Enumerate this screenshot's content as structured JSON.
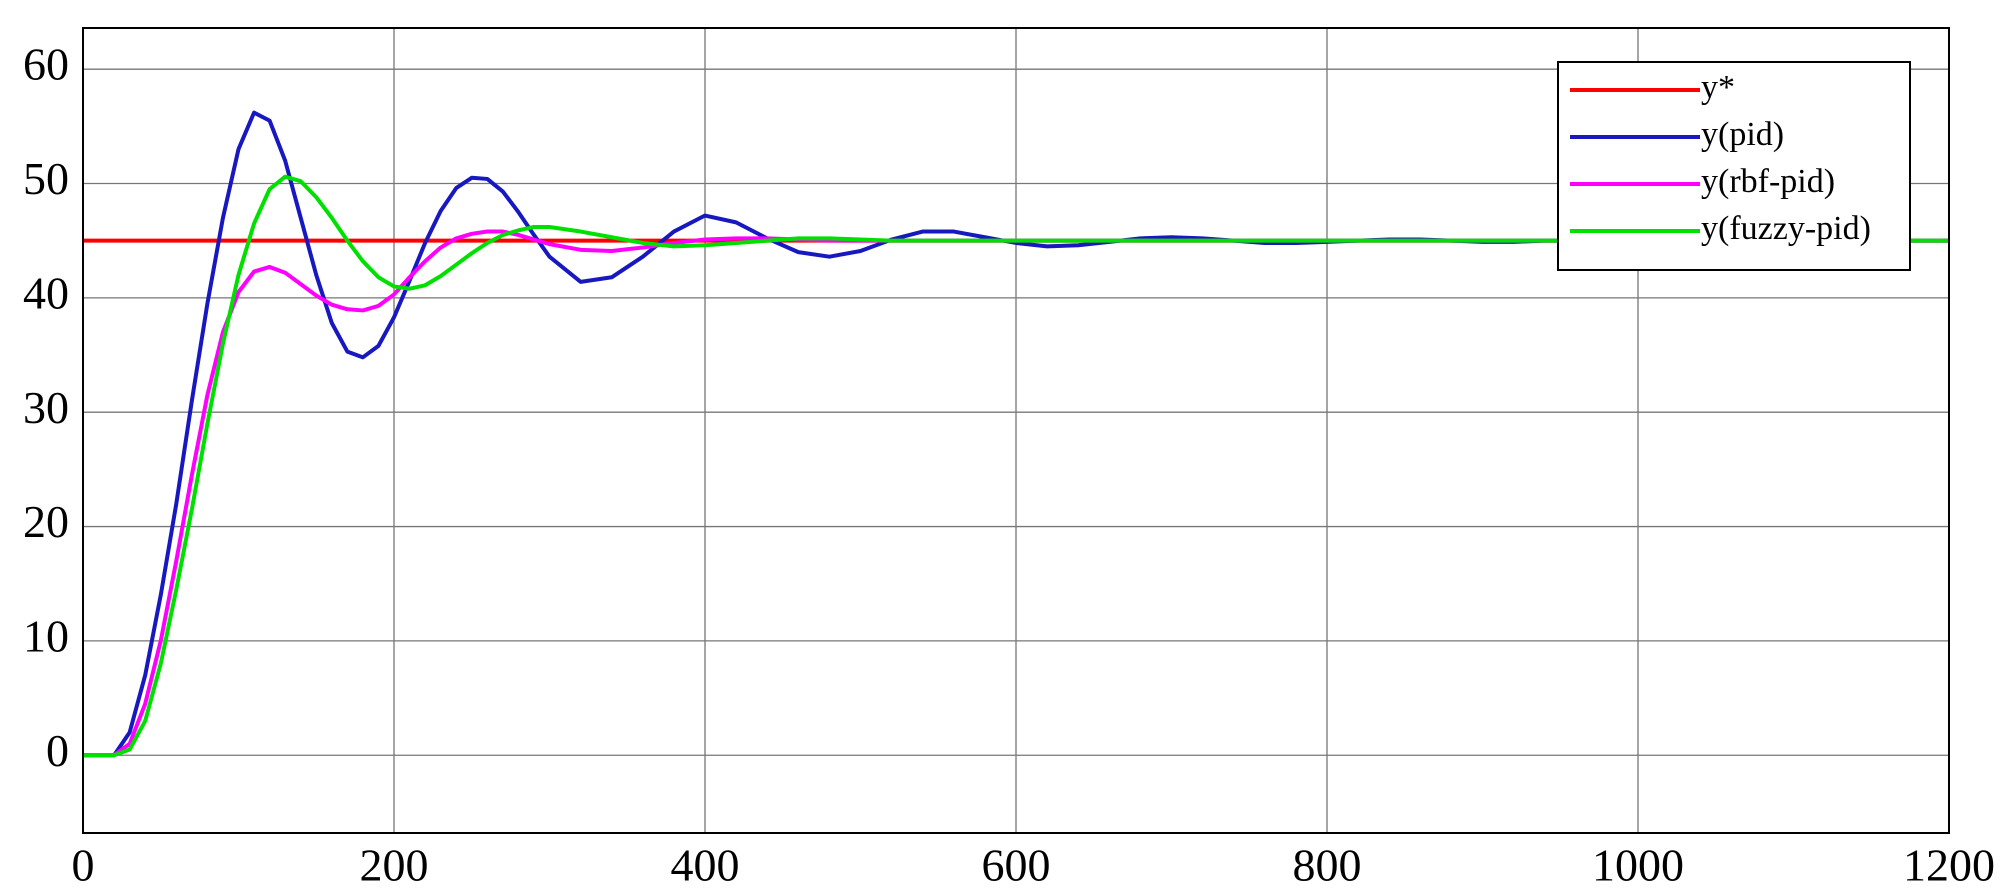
{
  "chart_data": {
    "type": "line",
    "x": [
      0,
      10,
      20,
      30,
      40,
      50,
      60,
      70,
      80,
      90,
      100,
      110,
      120,
      130,
      140,
      150,
      160,
      170,
      180,
      190,
      200,
      210,
      220,
      230,
      240,
      250,
      260,
      270,
      280,
      290,
      300,
      320,
      340,
      360,
      380,
      400,
      420,
      440,
      460,
      480,
      500,
      520,
      540,
      560,
      580,
      600,
      620,
      640,
      660,
      680,
      700,
      720,
      740,
      760,
      780,
      800,
      820,
      840,
      860,
      880,
      900,
      920,
      940,
      960,
      980,
      1000,
      1020,
      1040,
      1060,
      1080,
      1100,
      1120,
      1140,
      1160,
      1180,
      1200
    ],
    "series": [
      {
        "name": "y*",
        "color": "#ff0000",
        "values": [
          45,
          45,
          45,
          45,
          45,
          45,
          45,
          45,
          45,
          45,
          45,
          45,
          45,
          45,
          45,
          45,
          45,
          45,
          45,
          45,
          45,
          45,
          45,
          45,
          45,
          45,
          45,
          45,
          45,
          45,
          45,
          45,
          45,
          45,
          45,
          45,
          45,
          45,
          45,
          45,
          45,
          45,
          45,
          45,
          45,
          45,
          45,
          45,
          45,
          45,
          45,
          45,
          45,
          45,
          45,
          45,
          45,
          45,
          45,
          45,
          45,
          45,
          45,
          45,
          45,
          45,
          45,
          45,
          45,
          45,
          45,
          45,
          45,
          45,
          45,
          45
        ]
      },
      {
        "name": "y(pid)",
        "color": "#1818c0",
        "values": [
          0,
          0,
          0,
          2,
          7,
          14,
          22,
          31,
          39.5,
          47,
          53,
          56.2,
          55.5,
          52,
          47,
          42,
          37.8,
          35.3,
          34.8,
          35.8,
          38.3,
          41.5,
          44.8,
          47.6,
          49.6,
          50.5,
          50.4,
          49.3,
          47.5,
          45.5,
          43.6,
          41.4,
          41.8,
          43.6,
          45.8,
          47.2,
          46.6,
          45.2,
          44,
          43.6,
          44.1,
          45.1,
          45.8,
          45.8,
          45.3,
          44.8,
          44.5,
          44.6,
          44.9,
          45.2,
          45.3,
          45.2,
          45,
          44.8,
          44.8,
          44.9,
          45,
          45.1,
          45.1,
          45,
          44.9,
          44.9,
          45,
          45,
          45,
          45,
          45,
          45,
          45,
          45,
          45,
          45,
          45,
          45,
          45,
          45
        ]
      },
      {
        "name": "y(rbf-pid)",
        "color": "#ff00ff",
        "values": [
          0,
          0,
          0,
          1,
          4.5,
          10,
          17,
          24.5,
          31.5,
          37,
          40.5,
          42.3,
          42.7,
          42.2,
          41.2,
          40.2,
          39.4,
          39,
          38.9,
          39.3,
          40.3,
          41.8,
          43.2,
          44.4,
          45.2,
          45.6,
          45.8,
          45.8,
          45.5,
          45.1,
          44.7,
          44.2,
          44.1,
          44.4,
          44.8,
          45.1,
          45.2,
          45.2,
          45.1,
          45,
          45,
          45,
          45,
          45,
          45,
          45,
          45,
          45,
          45,
          45,
          45,
          45,
          45,
          45,
          45,
          45,
          45,
          45,
          45,
          45,
          45,
          45,
          45,
          45,
          45,
          45,
          45,
          45,
          45,
          45,
          45,
          45,
          45,
          45,
          45,
          45
        ]
      },
      {
        "name": "y(fuzzy-pid)",
        "color": "#00e000",
        "values": [
          0,
          0,
          0,
          0.5,
          3,
          8,
          14.5,
          21.5,
          29,
          36,
          42,
          46.5,
          49.5,
          50.6,
          50.2,
          48.8,
          47,
          45,
          43.2,
          41.8,
          41,
          40.8,
          41.1,
          41.9,
          42.9,
          43.9,
          44.8,
          45.5,
          45.9,
          46.2,
          46.2,
          45.8,
          45.3,
          44.8,
          44.5,
          44.6,
          44.8,
          45,
          45.2,
          45.2,
          45.1,
          45,
          45,
          45,
          45,
          45,
          45,
          45,
          45,
          45,
          45,
          45,
          45,
          45,
          45,
          45,
          45,
          45,
          45,
          45,
          45,
          45,
          45,
          45,
          45,
          45,
          45,
          45,
          45,
          45,
          45,
          45,
          45,
          45,
          45,
          45
        ]
      }
    ],
    "xlim": [
      0,
      1200
    ],
    "xticks": [
      0,
      200,
      400,
      600,
      800,
      1000,
      1200
    ],
    "ylim": [
      -6.8,
      63.6
    ],
    "yticks": [
      0,
      10,
      20,
      30,
      40,
      50,
      60
    ],
    "grid": true,
    "legend": "upper right"
  }
}
